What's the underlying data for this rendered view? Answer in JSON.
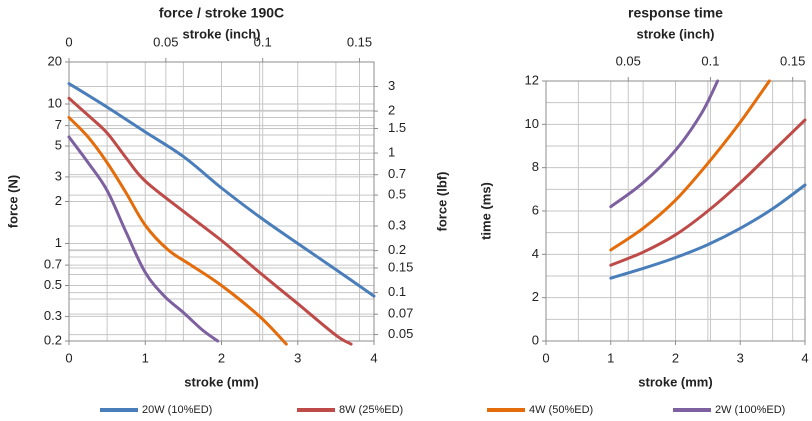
{
  "chart_data": [
    {
      "type": "line",
      "title": "force / stroke 190C",
      "xlabel": "stroke (mm)",
      "x2label": "stroke (inch)",
      "ylabel": "force (N)",
      "y2label": "force (lbf)",
      "yscale": "log",
      "xlim": [
        0,
        4
      ],
      "ylim": [
        0.2,
        20
      ],
      "x_ticks": [
        "0",
        "1",
        "2",
        "3",
        "4"
      ],
      "x2_ticks": [
        "0",
        "0.05",
        "0.1",
        "0.15"
      ],
      "y_ticks": [
        "0.2",
        "0.3",
        "0.5",
        "0.7",
        "1",
        "2",
        "3",
        "5",
        "7",
        "10",
        "20"
      ],
      "y2_ticks": [
        "0.05",
        "0.07",
        "0.1",
        "0.15",
        "0.2",
        "0.3",
        "0.5",
        "0.7",
        "1",
        "1.5",
        "2",
        "3"
      ],
      "grid": true,
      "series": [
        {
          "name": "20W (10%ED)",
          "color": "#4a7ebb",
          "x": [
            0,
            0.5,
            1,
            1.5,
            2,
            2.5,
            3,
            3.5,
            4
          ],
          "y": [
            14,
            9.5,
            6.3,
            4.2,
            2.5,
            1.55,
            1.0,
            0.65,
            0.42
          ]
        },
        {
          "name": "8W (25%ED)",
          "color": "#be4b48",
          "x": [
            0,
            0.25,
            0.5,
            0.75,
            1,
            1.5,
            2,
            2.5,
            3,
            3.5,
            3.7
          ],
          "y": [
            11,
            8.3,
            6.2,
            4.1,
            2.8,
            1.7,
            1.05,
            0.62,
            0.37,
            0.22,
            0.19
          ]
        },
        {
          "name": "4W (50%ED)",
          "color": "#e46c0a",
          "x": [
            0,
            0.25,
            0.5,
            0.75,
            1,
            1.3,
            1.6,
            2,
            2.5,
            2.85
          ],
          "y": [
            8,
            5.8,
            3.8,
            2.3,
            1.35,
            0.9,
            0.7,
            0.5,
            0.3,
            0.19
          ]
        },
        {
          "name": "2W (100%ED)",
          "color": "#7d60a0",
          "x": [
            0,
            0.25,
            0.5,
            0.75,
            1,
            1.25,
            1.5,
            1.75,
            1.95
          ],
          "y": [
            5.8,
            3.8,
            2.4,
            1.2,
            0.62,
            0.42,
            0.32,
            0.24,
            0.2
          ]
        }
      ]
    },
    {
      "type": "line",
      "title": "response time",
      "xlabel": "stroke (mm)",
      "x2label": "stroke (inch)",
      "ylabel": "time (ms)",
      "xlim": [
        0,
        4
      ],
      "ylim": [
        0,
        12
      ],
      "x_ticks": [
        "0",
        "1",
        "2",
        "3",
        "4"
      ],
      "x2_ticks": [
        "0.05",
        "0.1",
        "0.15"
      ],
      "y_ticks": [
        "0",
        "2",
        "4",
        "6",
        "8",
        "10",
        "12"
      ],
      "grid": true,
      "series": [
        {
          "name": "20W (10%ED)",
          "color": "#4a7ebb",
          "x": [
            1,
            1.5,
            2,
            2.5,
            3,
            3.5,
            4
          ],
          "y": [
            2.9,
            3.35,
            3.85,
            4.45,
            5.2,
            6.1,
            7.2
          ]
        },
        {
          "name": "8W (25%ED)",
          "color": "#be4b48",
          "x": [
            1,
            1.5,
            2,
            2.5,
            3,
            3.5,
            4
          ],
          "y": [
            3.5,
            4.1,
            4.9,
            6.0,
            7.3,
            8.75,
            10.2
          ]
        },
        {
          "name": "4W (50%ED)",
          "color": "#e46c0a",
          "x": [
            1,
            1.5,
            2,
            2.5,
            3,
            3.45
          ],
          "y": [
            4.2,
            5.2,
            6.5,
            8.2,
            10.1,
            12.0
          ]
        },
        {
          "name": "2W (100%ED)",
          "color": "#7d60a0",
          "x": [
            1,
            1.5,
            2,
            2.4,
            2.65
          ],
          "y": [
            6.2,
            7.3,
            8.8,
            10.5,
            12.0
          ]
        }
      ]
    }
  ],
  "legend": [
    {
      "label": "20W (10%ED)",
      "color": "#4a7ebb"
    },
    {
      "label": "8W (25%ED)",
      "color": "#be4b48"
    },
    {
      "label": "4W (50%ED)",
      "color": "#e46c0a"
    },
    {
      "label": "2W (100%ED)",
      "color": "#7d60a0"
    }
  ]
}
